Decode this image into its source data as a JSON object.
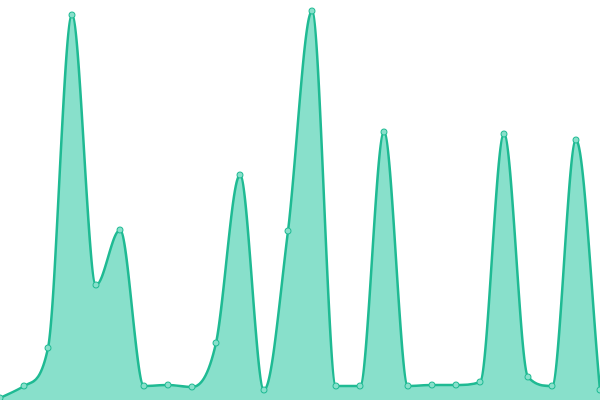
{
  "chart_data": {
    "type": "area",
    "values": [
      2,
      14,
      52,
      385,
      115,
      170,
      14,
      15,
      13,
      57,
      225,
      10,
      169,
      389,
      14,
      14,
      268,
      14,
      15,
      15,
      18,
      266,
      23,
      14,
      260,
      10
    ],
    "ylim": [
      0,
      400
    ],
    "color": "#1fba93",
    "fill": "#88e0cb"
  }
}
